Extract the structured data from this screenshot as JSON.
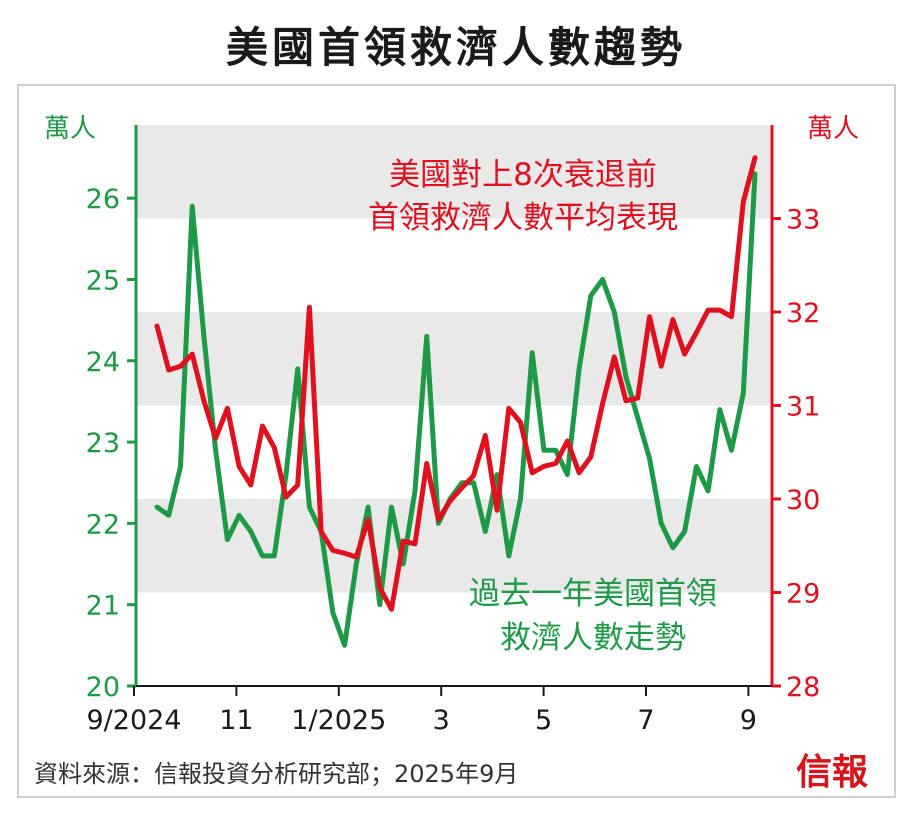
{
  "title": "美國首領救濟人數趨勢",
  "source": "資料來源：信報投資分析研究部；2025年9月",
  "logo": "信報",
  "colors": {
    "green": "#1e9a47",
    "red": "#e0101f",
    "band": "#e9e9e9",
    "frame": "#cfcfcf"
  },
  "chart_data": {
    "type": "line",
    "x_tick_labels": [
      "9/2024",
      "11",
      "1/2025",
      "3",
      "5",
      "7",
      "9"
    ],
    "left_axis": {
      "unit": "萬人",
      "ticks": [
        "20",
        "21",
        "22",
        "23",
        "24",
        "25",
        "26"
      ],
      "range": [
        20,
        26.9
      ]
    },
    "right_axis": {
      "unit": "萬人",
      "ticks": [
        "28",
        "29",
        "30",
        "31",
        "32",
        "33"
      ],
      "range": [
        28,
        34
      ]
    },
    "annotations": {
      "red": [
        "美國對上8次衰退前",
        "首領救濟人數平均表現"
      ],
      "green": [
        "過去一年美國首領",
        "救濟人數走勢"
      ]
    },
    "series": [
      {
        "axis": "left",
        "color": "#1e9a47",
        "values": [
          22.2,
          22.1,
          22.7,
          25.9,
          24.3,
          22.9,
          21.8,
          22.1,
          21.9,
          21.6,
          21.6,
          22.6,
          23.9,
          22.2,
          21.9,
          20.9,
          20.5,
          21.5,
          22.2,
          21.0,
          22.2,
          21.5,
          22.4,
          24.3,
          22.0,
          22.3,
          22.5,
          22.5,
          21.9,
          22.6,
          21.6,
          22.3,
          24.1,
          22.9,
          22.9,
          22.6,
          23.9,
          24.8,
          25.0,
          24.6,
          23.8,
          23.3,
          22.8,
          22.0,
          21.7,
          21.9,
          22.7,
          22.4,
          23.4,
          22.9,
          23.6,
          26.3
        ]
      },
      {
        "axis": "right",
        "color": "#e0101f",
        "values": [
          31.85,
          31.38,
          31.42,
          31.55,
          31.05,
          30.65,
          30.97,
          30.35,
          30.15,
          30.78,
          30.55,
          30.02,
          30.15,
          32.05,
          29.65,
          29.45,
          29.42,
          29.38,
          29.78,
          29.05,
          28.82,
          29.55,
          29.52,
          30.38,
          29.78,
          29.98,
          30.12,
          30.25,
          30.68,
          29.88,
          30.97,
          30.82,
          30.28,
          30.35,
          30.38,
          30.62,
          30.28,
          30.45,
          31.02,
          31.52,
          31.05,
          31.08,
          31.95,
          31.42,
          31.92,
          31.55,
          31.78,
          32.02,
          32.02,
          31.95,
          33.18,
          33.65
        ]
      }
    ]
  }
}
